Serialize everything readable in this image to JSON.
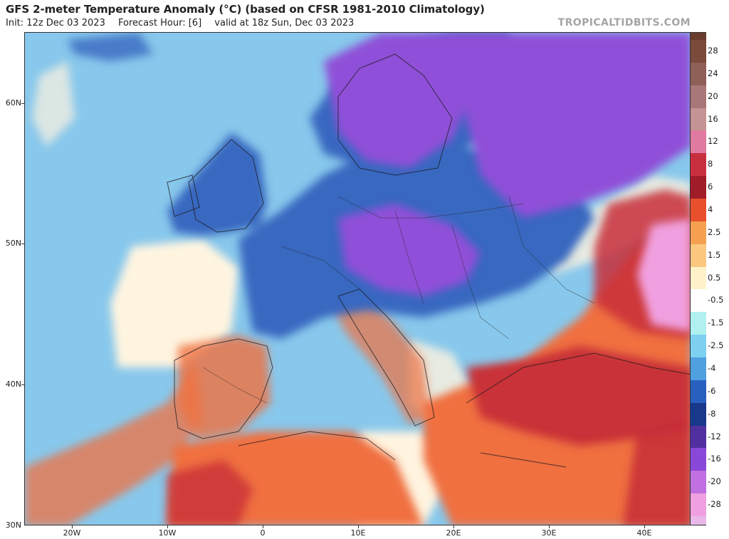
{
  "header": {
    "title": "GFS 2-meter Temperature Anomaly (°C) (based on CFSR 1981-2010 Climatology)",
    "init": "Init: 12z Dec 03 2023",
    "forecast_hour": "Forecast Hour: [6]",
    "valid": "valid at 18z Sun, Dec 03 2023",
    "brand": "TROPICALTIDBITS.COM"
  },
  "axes": {
    "lat_labels": [
      "60N",
      "50N",
      "40N",
      "30N"
    ],
    "lon_labels": [
      "20W",
      "10W",
      "0",
      "10E",
      "20E",
      "30E",
      "40E"
    ]
  },
  "colorbar": {
    "labels": [
      "28",
      "24",
      "20",
      "16",
      "12",
      "8",
      "6",
      "4",
      "2.5",
      "1.5",
      "0.5",
      "-0.5",
      "-1.5",
      "-2.5",
      "-4",
      "-6",
      "-8",
      "-12",
      "-16",
      "-20",
      "-28"
    ],
    "colors": [
      "#7a4a3a",
      "#8e6058",
      "#a87878",
      "#c49494",
      "#e07aa0",
      "#c83040",
      "#a01c28",
      "#e8502c",
      "#f4a050",
      "#fcc880",
      "#fff2c8",
      "#ffffff",
      "#b0f0f0",
      "#7ed0f0",
      "#50a0e0",
      "#2860c0",
      "#18388c",
      "#5030a0",
      "#8a48d8",
      "#c070e0",
      "#f0a0e0"
    ],
    "bottom_color": "#e8b8e8"
  },
  "map": {
    "ocean_color": "#88c8ec",
    "land_cold_color": "#3868c0",
    "very_cold_color": "#9050d8",
    "warm_color": "#f07040",
    "hot_color": "#c83038",
    "neutral_color": "#fff4e0",
    "extreme_pink_color": "#f0a0e0"
  }
}
